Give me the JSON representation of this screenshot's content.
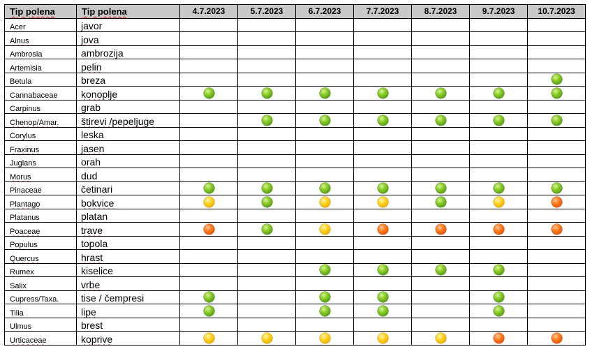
{
  "header": {
    "col_latin": "Tip polena",
    "col_local": "Tip polena",
    "dates": [
      "4.7.2023",
      "5.7.2023",
      "6.7.2023",
      "7.7.2023",
      "8.7.2023",
      "9.7.2023",
      "10.7.2023"
    ]
  },
  "level_colors": {
    "green": "#7cc41f",
    "yellow": "#ffc107",
    "orange": "#ff5a00"
  },
  "rows": [
    {
      "latin": "Acer",
      "local": "javor",
      "levels": [
        "",
        "",
        "",
        "",
        "",
        "",
        ""
      ]
    },
    {
      "latin": "Alnus",
      "local": "jova",
      "levels": [
        "",
        "",
        "",
        "",
        "",
        "",
        ""
      ]
    },
    {
      "latin": "Ambrosia",
      "local": "ambrozija",
      "levels": [
        "",
        "",
        "",
        "",
        "",
        "",
        ""
      ]
    },
    {
      "latin": "Artemisia",
      "local": "pelin",
      "levels": [
        "",
        "",
        "",
        "",
        "",
        "",
        ""
      ]
    },
    {
      "latin": "Betula",
      "local": "breza",
      "levels": [
        "",
        "",
        "",
        "",
        "",
        "",
        "green"
      ]
    },
    {
      "latin": "Cannabaceae",
      "local": "konoplje",
      "levels": [
        "green",
        "green",
        "green",
        "green",
        "green",
        "green",
        "green"
      ]
    },
    {
      "latin": "Carpinus",
      "local": "grab",
      "levels": [
        "",
        "",
        "",
        "",
        "",
        "",
        ""
      ]
    },
    {
      "latin": "Chenop/Amar.",
      "local": "štirevi /pepeljuge",
      "levels": [
        "",
        "green",
        "green",
        "green",
        "green",
        "green",
        "green"
      ]
    },
    {
      "latin": "Corylus",
      "local": "leska",
      "levels": [
        "",
        "",
        "",
        "",
        "",
        "",
        ""
      ]
    },
    {
      "latin": "Fraxinus",
      "local": "jasen",
      "levels": [
        "",
        "",
        "",
        "",
        "",
        "",
        ""
      ]
    },
    {
      "latin": "Juglans",
      "local": "orah",
      "levels": [
        "",
        "",
        "",
        "",
        "",
        "",
        ""
      ]
    },
    {
      "latin": "Morus",
      "local": "dud",
      "levels": [
        "",
        "",
        "",
        "",
        "",
        "",
        ""
      ]
    },
    {
      "latin": "Pinaceae",
      "local": "četinari",
      "levels": [
        "green",
        "green",
        "green",
        "green",
        "green",
        "green",
        "green"
      ]
    },
    {
      "latin": "Plantago",
      "local": "bokvice",
      "levels": [
        "yellow",
        "green",
        "yellow",
        "yellow",
        "green",
        "yellow",
        "orange"
      ]
    },
    {
      "latin": "Platanus",
      "local": "platan",
      "levels": [
        "",
        "",
        "",
        "",
        "",
        "",
        ""
      ]
    },
    {
      "latin": "Poaceae",
      "local": "trave",
      "levels": [
        "orange",
        "green",
        "yellow",
        "orange",
        "orange",
        "orange",
        "orange"
      ]
    },
    {
      "latin": "Populus",
      "local": "topola",
      "levels": [
        "",
        "",
        "",
        "",
        "",
        "",
        ""
      ]
    },
    {
      "latin": "Quercus",
      "local": "hrast",
      "levels": [
        "",
        "",
        "",
        "",
        "",
        "",
        ""
      ]
    },
    {
      "latin": "Rumex",
      "local": "kiselice",
      "levels": [
        "",
        "",
        "green",
        "green",
        "green",
        "green",
        ""
      ]
    },
    {
      "latin": "Salix",
      "local": "vrbe",
      "levels": [
        "",
        "",
        "",
        "",
        "",
        "",
        ""
      ]
    },
    {
      "latin": "Cupress/Taxa.",
      "local": "tise / čempresi",
      "levels": [
        "green",
        "",
        "green",
        "green",
        "",
        "green",
        ""
      ]
    },
    {
      "latin": "Tilia",
      "local": "lipe",
      "levels": [
        "green",
        "",
        "green",
        "green",
        "",
        "green",
        ""
      ]
    },
    {
      "latin": "Ulmus",
      "local": "brest",
      "levels": [
        "",
        "",
        "",
        "",
        "",
        "",
        ""
      ]
    },
    {
      "latin": "Urticaceae",
      "local": "koprive",
      "levels": [
        "yellow",
        "yellow",
        "yellow",
        "yellow",
        "yellow",
        "orange",
        "orange"
      ]
    }
  ]
}
